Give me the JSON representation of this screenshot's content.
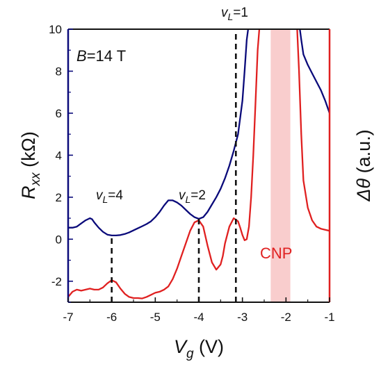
{
  "chart_data": {
    "type": "line",
    "x_axis": {
      "label_symbol": "V",
      "label_sub": "g",
      "label_unit": " (V)",
      "range": [
        -7,
        -1
      ],
      "ticks": [
        -7,
        -6,
        -5,
        -4,
        -3,
        -2,
        -1
      ],
      "tick_labels": [
        "-7",
        "-6",
        "-5",
        "-4",
        "-3",
        "-2",
        "-1"
      ]
    },
    "y_left": {
      "label_symbol": "R",
      "label_sub": "xx",
      "label_unit": " (kΩ)",
      "range": [
        -3,
        10
      ],
      "ticks": [
        -2,
        0,
        2,
        4,
        6,
        8,
        10
      ],
      "tick_labels": [
        "-2",
        "0",
        "2",
        "4",
        "6",
        "8",
        "10"
      ],
      "color": "#0a0a7a"
    },
    "y_right": {
      "label_symbol": "Δθ",
      "label_unit": " (a.u.)",
      "color": "#e02020"
    },
    "series": [
      {
        "color": "#0a0a7a",
        "axis": "left",
        "x": [
          -7.0,
          -6.9,
          -6.8,
          -6.7,
          -6.6,
          -6.5,
          -6.45,
          -6.4,
          -6.3,
          -6.2,
          -6.1,
          -6.0,
          -5.9,
          -5.8,
          -5.7,
          -5.6,
          -5.5,
          -5.4,
          -5.3,
          -5.2,
          -5.1,
          -5.0,
          -4.9,
          -4.8,
          -4.7,
          -4.6,
          -4.5,
          -4.4,
          -4.3,
          -4.2,
          -4.1,
          -4.0,
          -3.9,
          -3.8,
          -3.7,
          -3.6,
          -3.5,
          -3.4,
          -3.3,
          -3.2,
          -3.1,
          -3.0,
          -2.95,
          -2.9,
          -2.85,
          -1.7,
          -1.65,
          -1.6,
          -1.5,
          -1.4,
          -1.3,
          -1.2,
          -1.1,
          -1.0
        ],
        "y": [
          0.55,
          0.55,
          0.6,
          0.75,
          0.9,
          1.0,
          0.95,
          0.8,
          0.55,
          0.35,
          0.22,
          0.18,
          0.18,
          0.2,
          0.25,
          0.32,
          0.42,
          0.52,
          0.62,
          0.72,
          0.85,
          1.05,
          1.3,
          1.6,
          1.85,
          1.85,
          1.75,
          1.6,
          1.4,
          1.2,
          1.05,
          0.97,
          1.05,
          1.3,
          1.65,
          2.0,
          2.4,
          2.9,
          3.5,
          4.2,
          5.0,
          6.6,
          8.0,
          9.5,
          10.3,
          10.3,
          9.5,
          8.8,
          8.3,
          7.9,
          7.5,
          7.1,
          6.6,
          6.0
        ]
      },
      {
        "color": "#e02020",
        "axis": "right",
        "x": [
          -7.0,
          -6.9,
          -6.8,
          -6.7,
          -6.6,
          -6.5,
          -6.4,
          -6.3,
          -6.2,
          -6.1,
          -6.0,
          -5.9,
          -5.8,
          -5.7,
          -5.6,
          -5.5,
          -5.4,
          -5.3,
          -5.2,
          -5.1,
          -5.0,
          -4.9,
          -4.8,
          -4.7,
          -4.6,
          -4.5,
          -4.4,
          -4.3,
          -4.2,
          -4.1,
          -4.0,
          -3.9,
          -3.8,
          -3.7,
          -3.6,
          -3.5,
          -3.45,
          -3.4,
          -3.3,
          -3.2,
          -3.1,
          -3.05,
          -3.0,
          -2.95,
          -2.9,
          -2.85,
          -2.8,
          -2.75,
          -2.7,
          -2.65,
          -2.6,
          -1.75,
          -1.7,
          -1.65,
          -1.6,
          -1.5,
          -1.4,
          -1.3,
          -1.2,
          -1.1,
          -1.0
        ],
        "y": [
          -2.75,
          -2.5,
          -2.4,
          -2.45,
          -2.4,
          -2.35,
          -2.4,
          -2.4,
          -2.3,
          -2.1,
          -1.95,
          -2.05,
          -2.35,
          -2.6,
          -2.75,
          -2.8,
          -2.8,
          -2.82,
          -2.75,
          -2.65,
          -2.55,
          -2.5,
          -2.4,
          -2.25,
          -1.9,
          -1.4,
          -0.8,
          -0.2,
          0.4,
          0.8,
          0.9,
          0.6,
          -0.3,
          -1.1,
          -1.45,
          -1.2,
          -0.8,
          -0.2,
          0.6,
          1.0,
          0.85,
          0.55,
          0.2,
          -0.05,
          0.0,
          0.6,
          2.0,
          4.0,
          6.5,
          9.0,
          10.3,
          10.3,
          8.0,
          5.0,
          2.8,
          1.5,
          0.9,
          0.6,
          0.5,
          0.45,
          0.4
        ]
      }
    ],
    "dashed_lines": [
      {
        "x": -6.0,
        "y_top": 0.18
      },
      {
        "x": -4.0,
        "y_top": 0.97
      },
      {
        "x": -3.15,
        "y_top": 10
      }
    ],
    "shaded_band": {
      "x0": -2.35,
      "x1": -1.9,
      "color": "#f8c4c4"
    },
    "annotations": {
      "field": {
        "sym": "B",
        "rest": "=14 T"
      },
      "nu4": {
        "sym": "v",
        "sub": "L",
        "rest": "=4"
      },
      "nu2": {
        "sym": "v",
        "sub": "L",
        "rest": "=2"
      },
      "nu1": {
        "sym": "v",
        "sub": "L",
        "rest": "=1"
      },
      "cnp": {
        "text": "CNP",
        "color": "#e02020"
      }
    }
  }
}
